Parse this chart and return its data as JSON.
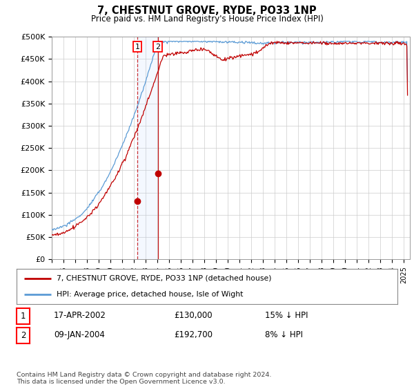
{
  "title": "7, CHESTNUT GROVE, RYDE, PO33 1NP",
  "subtitle": "Price paid vs. HM Land Registry's House Price Index (HPI)",
  "ylabel_ticks": [
    "£0",
    "£50K",
    "£100K",
    "£150K",
    "£200K",
    "£250K",
    "£300K",
    "£350K",
    "£400K",
    "£450K",
    "£500K"
  ],
  "ytick_vals": [
    0,
    50000,
    100000,
    150000,
    200000,
    250000,
    300000,
    350000,
    400000,
    450000,
    500000
  ],
  "ylim": [
    0,
    500000
  ],
  "xlim_start": 1995.0,
  "xlim_end": 2025.5,
  "hpi_color": "#5b9bd5",
  "price_color": "#c00000",
  "purchase1_date": 2002.29,
  "purchase1_price": 130000,
  "purchase2_date": 2004.03,
  "purchase2_price": 192700,
  "legend_entries": [
    "7, CHESTNUT GROVE, RYDE, PO33 1NP (detached house)",
    "HPI: Average price, detached house, Isle of Wight"
  ],
  "table_rows": [
    [
      "1",
      "17-APR-2002",
      "£130,000",
      "15% ↓ HPI"
    ],
    [
      "2",
      "09-JAN-2004",
      "£192,700",
      "8% ↓ HPI"
    ]
  ],
  "footer": "Contains HM Land Registry data © Crown copyright and database right 2024.\nThis data is licensed under the Open Government Licence v3.0.",
  "background_color": "#ffffff",
  "grid_color": "#cccccc"
}
